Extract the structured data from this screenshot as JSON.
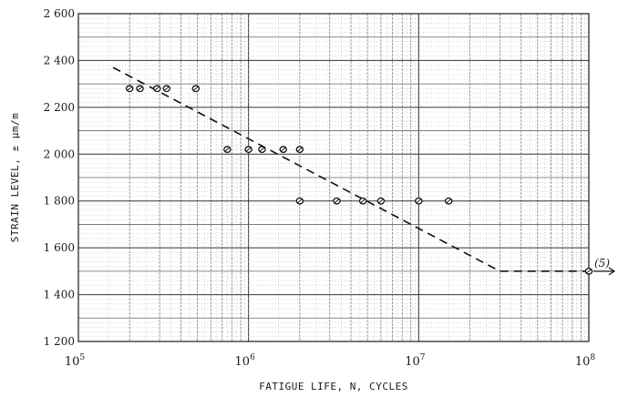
{
  "chart_data": {
    "type": "scatter",
    "title": "",
    "xlabel": "FATIGUE LIFE, N, CYCLES",
    "ylabel": "STRAIN LEVEL, ± μm/m",
    "x_scale": "log",
    "xlim": [
      100000,
      100000000
    ],
    "ylim": [
      1200,
      2600
    ],
    "grid": true,
    "x_ticks": [
      {
        "value": 100000,
        "base": "10",
        "exp": "5"
      },
      {
        "value": 1000000,
        "base": "10",
        "exp": "6"
      },
      {
        "value": 10000000,
        "base": "10",
        "exp": "7"
      },
      {
        "value": 100000000,
        "base": "10",
        "exp": "8"
      }
    ],
    "y_ticks": [
      {
        "value": 1200,
        "label": "1 200"
      },
      {
        "value": 1400,
        "label": "1 400"
      },
      {
        "value": 1600,
        "label": "1 600"
      },
      {
        "value": 1800,
        "label": "1 800"
      },
      {
        "value": 2000,
        "label": "2 000"
      },
      {
        "value": 2200,
        "label": "2 200"
      },
      {
        "value": 2400,
        "label": "2 400"
      },
      {
        "value": 2600,
        "label": "2 600"
      }
    ],
    "series": [
      {
        "marker": "circle",
        "x": [
          200000,
          230000,
          290000,
          330000,
          490000,
          750000,
          1000000,
          1200000,
          1600000,
          2000000,
          2000000,
          3300000,
          4700000,
          6000000,
          10000000,
          15000000,
          100000000
        ],
        "y": [
          2280,
          2280,
          2280,
          2280,
          2280,
          2020,
          2020,
          2020,
          2020,
          2020,
          1800,
          1800,
          1800,
          1800,
          1800,
          1800,
          1500
        ]
      },
      {
        "style": "dashed",
        "x": [
          160000,
          30000000,
          100000000
        ],
        "y": [
          2370,
          1500,
          1500
        ]
      }
    ],
    "annotations": [
      {
        "text": "(5)",
        "x": 100000000,
        "y": 1500
      }
    ]
  }
}
